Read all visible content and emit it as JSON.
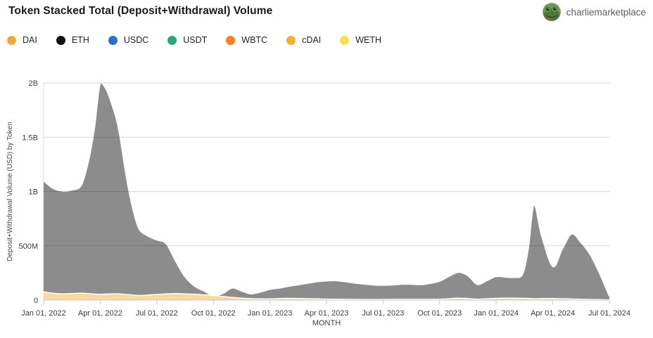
{
  "header": {
    "title": "Token Stacked Total (Deposit+Withdrawal) Volume",
    "user": "charliemarketplace"
  },
  "legend": {
    "items": [
      {
        "label": "DAI",
        "color": "#F2A93B"
      },
      {
        "label": "ETH",
        "color": "#0E0E10"
      },
      {
        "label": "USDC",
        "color": "#2A6FD2"
      },
      {
        "label": "USDT",
        "color": "#2EA67A"
      },
      {
        "label": "WBTC",
        "color": "#F5821F"
      },
      {
        "label": "cDAI",
        "color": "#EDB22E"
      },
      {
        "label": "WETH",
        "color": "#F7E04B"
      }
    ]
  },
  "chart_data": {
    "type": "area",
    "stacked": true,
    "title": "Token Stacked Total (Deposit+Withdrawal) Volume",
    "xlabel": "MONTH",
    "ylabel": "Deposit+Withdrawal Volume (USD) by Token",
    "unit": "millions of USD",
    "x_unit": "months since Jan 01, 2022",
    "grid": "horizontal",
    "x_ticks": [
      "Jan 01, 2022",
      "Apr 01, 2022",
      "Jul 01, 2022",
      "Oct 01, 2022",
      "Jan 01, 2023",
      "Apr 01, 2023",
      "Jul 01, 2023",
      "Oct 01, 2023",
      "Jan 01, 2024",
      "Apr 01, 2024",
      "Jul 01, 2024"
    ],
    "x_tick_positions_months": [
      0,
      3,
      6,
      9,
      12,
      15,
      18,
      21,
      24,
      27,
      30
    ],
    "y_ticks": [
      {
        "label": "0",
        "value": 0
      },
      {
        "label": "500M",
        "value": 500
      },
      {
        "label": "1B",
        "value": 1000
      },
      {
        "label": "1.5B",
        "value": 1500
      },
      {
        "label": "2B",
        "value": 2000
      }
    ],
    "ylim_musd": [
      0,
      2000
    ],
    "xlim_months": [
      0,
      30
    ],
    "series": [
      {
        "name": "stacked-total",
        "description": "Top edge of the full token stack (rendered as one gray mass)",
        "fill": "#8C8C8C",
        "stroke": "#FFFFFF",
        "stroke_width": 2,
        "points_musd": [
          [
            0,
            1100
          ],
          [
            0.5,
            1030
          ],
          [
            1,
            1005
          ],
          [
            1.5,
            1015
          ],
          [
            2,
            1060
          ],
          [
            2.4,
            1300
          ],
          [
            2.7,
            1600
          ],
          [
            3,
            2000
          ],
          [
            3.35,
            1930
          ],
          [
            3.7,
            1760
          ],
          [
            4,
            1560
          ],
          [
            4.5,
            1030
          ],
          [
            5,
            680
          ],
          [
            5.5,
            595
          ],
          [
            6,
            555
          ],
          [
            6.5,
            520
          ],
          [
            7,
            360
          ],
          [
            7.5,
            215
          ],
          [
            8,
            130
          ],
          [
            8.5,
            85
          ],
          [
            9,
            42
          ],
          [
            9.5,
            62
          ],
          [
            10,
            112
          ],
          [
            10.5,
            85
          ],
          [
            11,
            58
          ],
          [
            11.5,
            75
          ],
          [
            12,
            100
          ],
          [
            12.5,
            112
          ],
          [
            13,
            128
          ],
          [
            13.5,
            142
          ],
          [
            14,
            156
          ],
          [
            14.5,
            170
          ],
          [
            15,
            178
          ],
          [
            15.5,
            180
          ],
          [
            16,
            170
          ],
          [
            16.5,
            158
          ],
          [
            17,
            148
          ],
          [
            17.5,
            140
          ],
          [
            18,
            137
          ],
          [
            18.5,
            140
          ],
          [
            19,
            147
          ],
          [
            19.5,
            147
          ],
          [
            20,
            143
          ],
          [
            20.5,
            155
          ],
          [
            21,
            175
          ],
          [
            21.5,
            220
          ],
          [
            22,
            257
          ],
          [
            22.5,
            225
          ],
          [
            23,
            145
          ],
          [
            23.5,
            180
          ],
          [
            24,
            218
          ],
          [
            24.5,
            213
          ],
          [
            25,
            210
          ],
          [
            25.4,
            240
          ],
          [
            25.7,
            480
          ],
          [
            26,
            880
          ],
          [
            26.4,
            600
          ],
          [
            27,
            310
          ],
          [
            27.5,
            470
          ],
          [
            28,
            610
          ],
          [
            28.5,
            530
          ],
          [
            29,
            415
          ],
          [
            29.5,
            240
          ],
          [
            30,
            35
          ]
        ]
      },
      {
        "name": "dai-bottom-band",
        "description": "Thin tan band at the bottom of the stack",
        "fill": "#F8D9A2",
        "stroke": "#FFFFFF",
        "stroke_width": 1.5,
        "points_musd": [
          [
            0,
            76
          ],
          [
            0.5,
            62
          ],
          [
            1,
            57
          ],
          [
            1.5,
            60
          ],
          [
            2,
            64
          ],
          [
            2.5,
            58
          ],
          [
            3,
            53
          ],
          [
            3.5,
            57
          ],
          [
            4,
            57
          ],
          [
            4.5,
            50
          ],
          [
            5,
            42
          ],
          [
            5.5,
            46
          ],
          [
            6,
            52
          ],
          [
            6.5,
            57
          ],
          [
            7,
            60
          ],
          [
            7.5,
            57
          ],
          [
            8,
            54
          ],
          [
            8.5,
            48
          ],
          [
            9,
            42
          ],
          [
            9.5,
            33
          ],
          [
            10,
            25
          ],
          [
            10.5,
            18
          ],
          [
            11,
            13
          ],
          [
            11.5,
            11
          ],
          [
            12,
            11
          ],
          [
            12.5,
            14
          ],
          [
            13,
            16
          ],
          [
            13.5,
            15
          ],
          [
            14,
            13
          ],
          [
            14.5,
            11
          ],
          [
            15,
            9
          ],
          [
            16,
            7
          ],
          [
            17,
            6
          ],
          [
            18,
            6
          ],
          [
            19,
            7
          ],
          [
            20,
            7
          ],
          [
            21,
            8
          ],
          [
            21.5,
            13
          ],
          [
            22,
            18
          ],
          [
            22.5,
            14
          ],
          [
            23,
            8
          ],
          [
            23.5,
            12
          ],
          [
            24,
            16
          ],
          [
            24.5,
            18
          ],
          [
            25,
            18
          ],
          [
            25.5,
            16
          ],
          [
            26,
            13
          ],
          [
            26.5,
            14
          ],
          [
            27,
            14
          ],
          [
            27.5,
            12
          ],
          [
            28,
            10
          ],
          [
            28.5,
            8
          ],
          [
            29,
            6
          ],
          [
            29.5,
            5
          ],
          [
            30,
            3
          ]
        ]
      }
    ],
    "colors": {
      "gridline": "rgba(0,0,0,0.16)",
      "axis_line": "#c9c9c9",
      "tick_label": "#3d3d3d",
      "axis_title": "#4a4a4a"
    }
  }
}
